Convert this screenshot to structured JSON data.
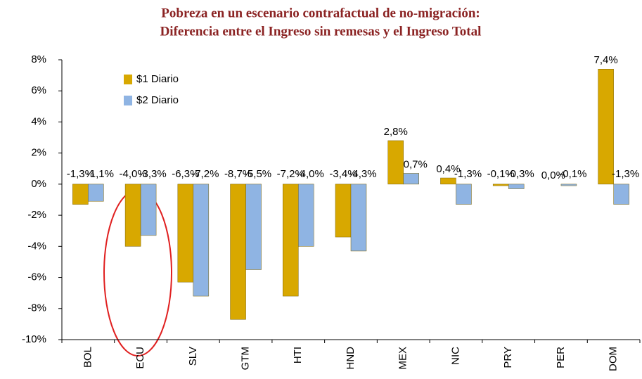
{
  "chart_data": {
    "type": "bar",
    "title": [
      "Pobreza en un escenario contrafactual de no-migración:",
      "Diferencia entre el Ingreso sin remesas y el Ingreso Total"
    ],
    "categories": [
      "BOL",
      "ECU",
      "SLV",
      "GTM",
      "HTI",
      "HND",
      "MEX",
      "NIC",
      "PRY",
      "PER",
      "DOM"
    ],
    "series": [
      {
        "name": "$1 Diario",
        "color": "#d8a800",
        "values": [
          -1.3,
          -4.0,
          -6.3,
          -8.7,
          -7.2,
          -3.4,
          2.8,
          0.4,
          -0.1,
          0.0,
          7.4
        ],
        "value_labels": [
          "-1,3%",
          "-4,0%",
          "-6,3%",
          "-8,7%",
          "-7,2%",
          "-3,4%",
          "2,8%",
          "0,4%",
          "-0,1%",
          "0,0%",
          "7,4%"
        ]
      },
      {
        "name": "$2 Diario",
        "color": "#8fb4e3",
        "values": [
          -1.1,
          -3.3,
          -7.2,
          -5.5,
          -4.0,
          -4.3,
          0.7,
          -1.3,
          -0.3,
          -0.1,
          -1.3
        ],
        "value_labels": [
          "-1,1%",
          "-3,3%",
          "-7,2%",
          "-5,5%",
          "-4,0%",
          "-4,3%",
          "0,7%",
          "-1,3%",
          "-0,3%",
          "-0,1%",
          "-1,3%"
        ]
      }
    ],
    "ylim": [
      -10,
      8
    ],
    "yticks": [
      {
        "value": -10,
        "label": "-10%"
      },
      {
        "value": -8,
        "label": "-8%"
      },
      {
        "value": -6,
        "label": "-6%"
      },
      {
        "value": -4,
        "label": "-4%"
      },
      {
        "value": -2,
        "label": "-2%"
      },
      {
        "value": 0,
        "label": "0%"
      },
      {
        "value": 2,
        "label": "2%"
      },
      {
        "value": 4,
        "label": "4%"
      },
      {
        "value": 6,
        "label": "6%"
      },
      {
        "value": 8,
        "label": "8%"
      }
    ],
    "grid": false,
    "legend": "upper left"
  }
}
